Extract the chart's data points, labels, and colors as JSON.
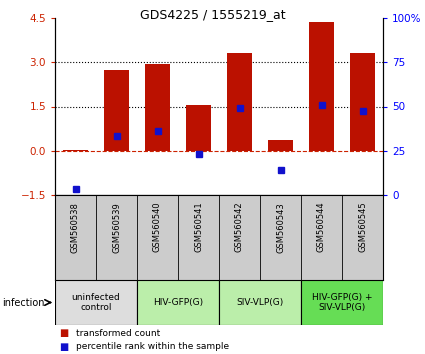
{
  "title": "GDS4225 / 1555219_at",
  "samples": [
    "GSM560538",
    "GSM560539",
    "GSM560540",
    "GSM560541",
    "GSM560542",
    "GSM560543",
    "GSM560544",
    "GSM560545"
  ],
  "bar_values": [
    0.02,
    2.75,
    2.95,
    1.55,
    3.3,
    0.35,
    4.35,
    3.3
  ],
  "blue_values": [
    -1.3,
    0.5,
    0.68,
    -0.12,
    1.45,
    -0.65,
    1.55,
    1.35
  ],
  "ylim_left": [
    -1.5,
    4.5
  ],
  "ylim_right": [
    0,
    100
  ],
  "left_ticks": [
    -1.5,
    0,
    1.5,
    3,
    4.5
  ],
  "dotted_lines": [
    1.5,
    3.0
  ],
  "dashed_line": 0.0,
  "bar_color": "#bb1100",
  "blue_color": "#1111cc",
  "groups": [
    {
      "label": "uninfected\ncontrol",
      "start": 0,
      "end": 2,
      "color": "#dddddd"
    },
    {
      "label": "HIV-GFP(G)",
      "start": 2,
      "end": 4,
      "color": "#bbeeaa"
    },
    {
      "label": "SIV-VLP(G)",
      "start": 4,
      "end": 6,
      "color": "#bbeeaa"
    },
    {
      "label": "HIV-GFP(G) +\nSIV-VLP(G)",
      "start": 6,
      "end": 8,
      "color": "#66dd55"
    }
  ],
  "infection_label": "infection",
  "legend": [
    {
      "label": "transformed count",
      "color": "#bb1100"
    },
    {
      "label": "percentile rank within the sample",
      "color": "#1111cc"
    }
  ],
  "right_ticks": [
    0,
    25,
    50,
    75,
    100
  ],
  "right_tick_labels": [
    "0",
    "25",
    "50",
    "75",
    "100%"
  ],
  "sample_bg": "#cccccc"
}
